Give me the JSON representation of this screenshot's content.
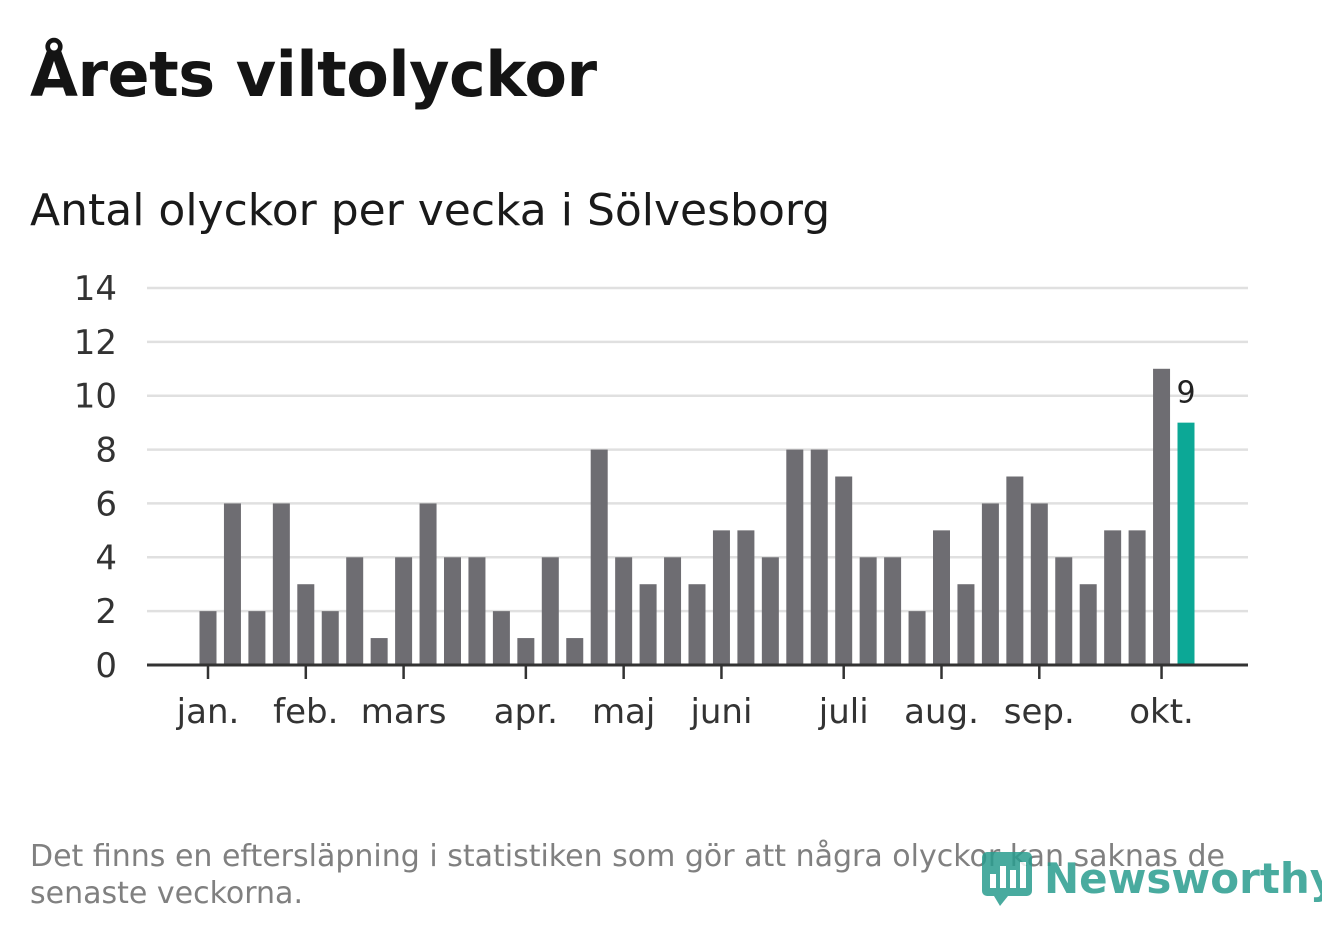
{
  "header": {
    "title": "Årets viltolyckor",
    "subtitle": "Antal olyckor per vecka i Sölvesborg"
  },
  "footer": {
    "note": "Det finns en eftersläpning i statistiken som gör att några olyckor kan saknas de senaste veckorna.",
    "logo_text": "Newsworthy"
  },
  "colors": {
    "bar": "#6e6d72",
    "highlight": "#0ca896",
    "grid": "#e0e0e0",
    "axis": "#333333"
  },
  "chart_data": {
    "type": "bar",
    "title": "Antal olyckor per vecka i Sölvesborg",
    "xlabel": "",
    "ylabel": "",
    "ylim": [
      0,
      14
    ],
    "yticks": [
      0,
      2,
      4,
      6,
      8,
      10,
      12,
      14
    ],
    "weeks": [
      1,
      2,
      3,
      4,
      5,
      6,
      7,
      8,
      9,
      10,
      11,
      12,
      13,
      14,
      15,
      16,
      17,
      18,
      19,
      20,
      21,
      22,
      23,
      24,
      25,
      26,
      27,
      28,
      29,
      30,
      31,
      32,
      33,
      34,
      35,
      36,
      37,
      38,
      39,
      40,
      41
    ],
    "values": [
      2,
      6,
      2,
      6,
      3,
      2,
      4,
      1,
      4,
      6,
      4,
      4,
      2,
      1,
      4,
      1,
      8,
      4,
      3,
      4,
      3,
      5,
      5,
      4,
      8,
      8,
      7,
      4,
      4,
      2,
      5,
      3,
      6,
      7,
      6,
      4,
      3,
      5,
      5,
      11,
      9
    ],
    "highlight_index": 40,
    "highlight_label": "9",
    "month_ticks": [
      {
        "label": "jan.",
        "week": 1
      },
      {
        "label": "feb.",
        "week": 5
      },
      {
        "label": "mars",
        "week": 9
      },
      {
        "label": "apr.",
        "week": 14
      },
      {
        "label": "maj",
        "week": 18
      },
      {
        "label": "juni",
        "week": 22
      },
      {
        "label": "juli",
        "week": 27
      },
      {
        "label": "aug.",
        "week": 31
      },
      {
        "label": "sep.",
        "week": 35
      },
      {
        "label": "okt.",
        "week": 40
      }
    ]
  }
}
